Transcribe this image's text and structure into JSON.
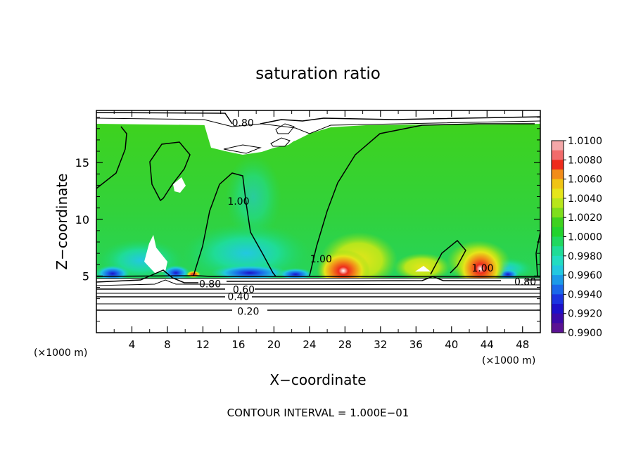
{
  "chart_data": {
    "type": "heatmap",
    "title": "saturation ratio",
    "xlabel": "X−coordinate",
    "ylabel": "Z−coordinate",
    "x_unit_left": "(×1000 m)",
    "x_unit_right": "(×1000 m)",
    "xlim": [
      0,
      50
    ],
    "ylim": [
      0,
      19.6
    ],
    "x_ticks": [
      4,
      8,
      12,
      16,
      20,
      24,
      28,
      32,
      36,
      40,
      44,
      48
    ],
    "x_ticks_minor": [
      2,
      6,
      10,
      14,
      18,
      22,
      26,
      30,
      34,
      38,
      42,
      46,
      50
    ],
    "y_ticks": [
      5,
      10,
      15
    ],
    "y_ticks_minor": [
      1,
      2,
      3,
      4,
      6,
      7,
      8,
      9,
      11,
      12,
      13,
      14,
      16,
      17,
      18,
      19
    ],
    "colorbar": {
      "labels": [
        "1.0100",
        "1.0080",
        "1.0060",
        "1.0040",
        "1.0020",
        "1.0000",
        "0.9980",
        "0.9960",
        "0.9940",
        "0.9920",
        "0.9900"
      ],
      "colors_top_to_bottom": [
        "#f4a7a8",
        "#f26b6b",
        "#ee2c1c",
        "#f28c1a",
        "#f0c414",
        "#e6e51a",
        "#b8e61c",
        "#7fde1c",
        "#3ed21e",
        "#22d32d",
        "#20d85f",
        "#1fdc97",
        "#22dcc2",
        "#22c8e0",
        "#1b9ae8",
        "#1a68ea",
        "#1b34e0",
        "#1d10c9",
        "#3b0aa8",
        "#5a1293"
      ]
    },
    "contour_labels": [
      {
        "text": "0.80",
        "x": 16.5,
        "y": 18.5
      },
      {
        "text": "1.00",
        "x": 16.0,
        "y": 11.6
      },
      {
        "text": "1.00",
        "x": 25.3,
        "y": 6.5
      },
      {
        "text": "1.00",
        "x": 43.5,
        "y": 5.7
      },
      {
        "text": "0.80",
        "x": 12.8,
        "y": 4.3
      },
      {
        "text": "0.60",
        "x": 16.6,
        "y": 3.8
      },
      {
        "text": "0.40",
        "x": 16.0,
        "y": 3.2
      },
      {
        "text": "0.20",
        "x": 17.1,
        "y": 1.9
      },
      {
        "text": "0.80",
        "x": 48.3,
        "y": 4.5
      }
    ],
    "footer": "CONTOUR INTERVAL = 1.000E−01"
  }
}
